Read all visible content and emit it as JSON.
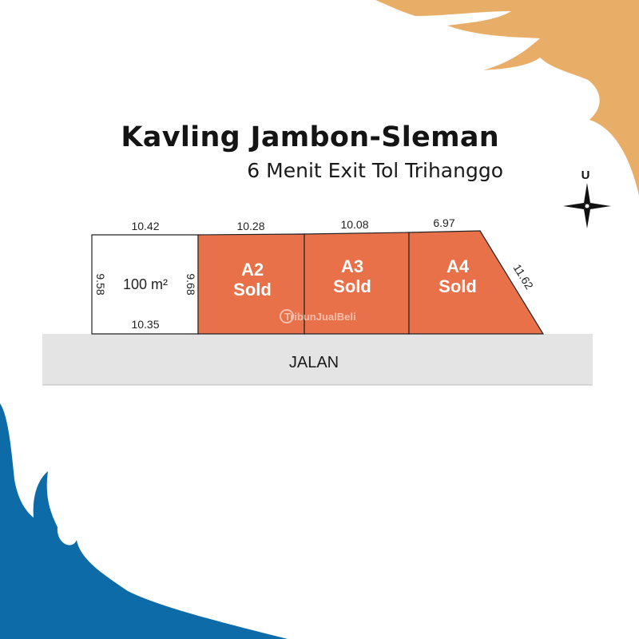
{
  "header": {
    "title": "Kavling Jambon-Sleman",
    "subtitle": "6 Menit Exit Tol Trihanggo"
  },
  "compass": {
    "label": "U",
    "icon": "compass-rose-icon"
  },
  "plots": [
    {
      "id": "A1",
      "area": "100 m²",
      "top": "10.42",
      "bottom": "10.35",
      "left": "9.58",
      "right": "9.68",
      "status": "available"
    },
    {
      "id": "A2",
      "name": "A2",
      "status_label": "Sold",
      "top": "10.28"
    },
    {
      "id": "A3",
      "name": "A3",
      "status_label": "Sold",
      "top": "10.08"
    },
    {
      "id": "A4",
      "name": "A4",
      "status_label": "Sold",
      "top": "6.97",
      "diagonal": "11.62"
    }
  ],
  "road": {
    "label": "JALAN"
  },
  "watermark": "TribunJualBeli",
  "colors": {
    "sold": "#e8714a",
    "road": "#e4e4e4",
    "accent_orange": "#e8ad66",
    "accent_blue": "#0d6ba8"
  }
}
